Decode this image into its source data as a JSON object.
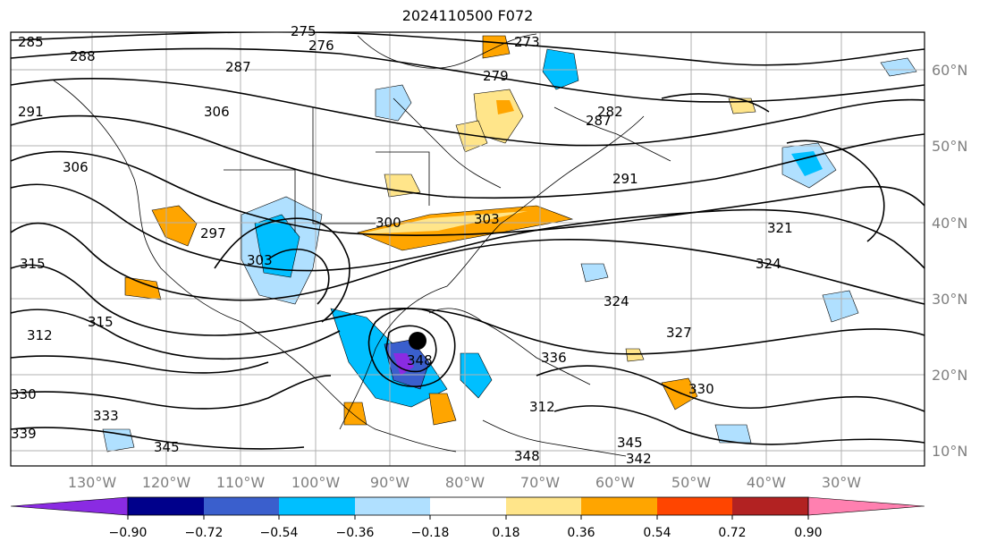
{
  "title": "2024110500 F072",
  "map": {
    "lon_labels": [
      "130°W",
      "120°W",
      "110°W",
      "100°W",
      "90°W",
      "80°W",
      "70°W",
      "60°W",
      "50°W",
      "40°W",
      "30°W"
    ],
    "lat_labels": [
      "60°N",
      "50°N",
      "40°N",
      "30°N",
      "20°N",
      "10°N"
    ],
    "contour_labels": [
      "285",
      "288",
      "276",
      "275",
      "273",
      "287",
      "291",
      "306",
      "306",
      "315",
      "297",
      "303",
      "300",
      "303",
      "312",
      "315",
      "321",
      "324",
      "324",
      "327",
      "330",
      "312",
      "333",
      "330",
      "336",
      "339",
      "345",
      "345",
      "348",
      "342",
      "348",
      "287",
      "279",
      "282",
      "291"
    ],
    "marker": "storm-center"
  },
  "colorbar": {
    "ticks": [
      "−0.90",
      "−0.72",
      "−0.54",
      "−0.36",
      "−0.18",
      "0.18",
      "0.36",
      "0.54",
      "0.72",
      "0.90"
    ],
    "colors": [
      "#8a2be2",
      "#00008b",
      "#3a5fcd",
      "#00bfff",
      "#b0e0ff",
      "#ffffff",
      "#ffe58a",
      "#ffa500",
      "#ff4500",
      "#b22222",
      "#ff80b0"
    ]
  }
}
